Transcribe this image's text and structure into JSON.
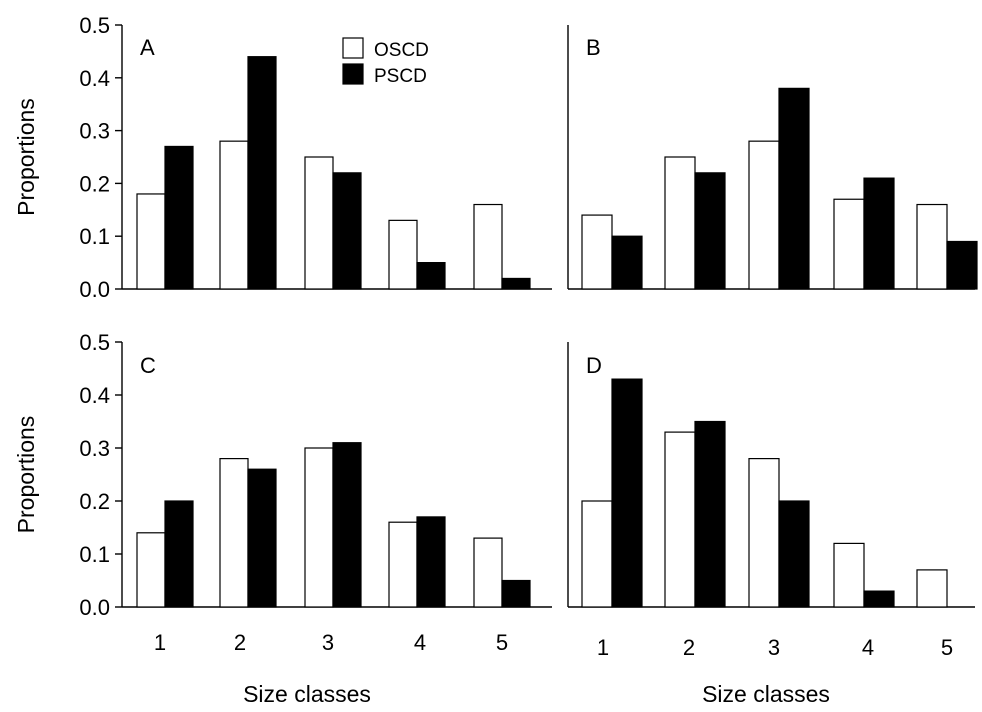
{
  "figure": {
    "ylabel": "Proportions",
    "xlabel": "Size classes"
  },
  "legend": [
    {
      "name": "OSCD",
      "fill": "#ffffff"
    },
    {
      "name": "PSCD",
      "fill": "#000000"
    }
  ],
  "chart_data": [
    {
      "type": "bar",
      "panel": "A",
      "categories": [
        "1",
        "2",
        "3",
        "4",
        "5"
      ],
      "series": [
        {
          "name": "OSCD",
          "values": [
            0.18,
            0.28,
            0.25,
            0.13,
            0.16
          ]
        },
        {
          "name": "PSCD",
          "values": [
            0.27,
            0.44,
            0.22,
            0.05,
            0.02
          ]
        }
      ],
      "ylim": [
        0,
        0.5
      ],
      "yticks": [
        "0.0",
        "0.1",
        "0.2",
        "0.3",
        "0.4",
        "0.5"
      ],
      "ylabel": "Proportions",
      "xlabel": "",
      "legend": "top-center"
    },
    {
      "type": "bar",
      "panel": "B",
      "categories": [
        "1",
        "2",
        "3",
        "4",
        "5"
      ],
      "series": [
        {
          "name": "OSCD",
          "values": [
            0.14,
            0.25,
            0.28,
            0.17,
            0.16
          ]
        },
        {
          "name": "PSCD",
          "values": [
            0.1,
            0.22,
            0.38,
            0.21,
            0.09
          ]
        }
      ],
      "ylim": [
        0,
        0.5
      ],
      "xlabel": ""
    },
    {
      "type": "bar",
      "panel": "C",
      "categories": [
        "1",
        "2",
        "3",
        "4",
        "5"
      ],
      "series": [
        {
          "name": "OSCD",
          "values": [
            0.14,
            0.28,
            0.3,
            0.16,
            0.13
          ]
        },
        {
          "name": "PSCD",
          "values": [
            0.2,
            0.26,
            0.31,
            0.17,
            0.05
          ]
        }
      ],
      "ylim": [
        0,
        0.5
      ],
      "yticks": [
        "0.0",
        "0.1",
        "0.2",
        "0.3",
        "0.4",
        "0.5"
      ],
      "ylabel": "Proportions",
      "xlabel": "Size classes"
    },
    {
      "type": "bar",
      "panel": "D",
      "categories": [
        "1",
        "2",
        "3",
        "4",
        "5"
      ],
      "series": [
        {
          "name": "OSCD",
          "values": [
            0.2,
            0.33,
            0.28,
            0.12,
            0.07
          ]
        },
        {
          "name": "PSCD",
          "values": [
            0.43,
            0.35,
            0.2,
            0.03,
            0.0
          ]
        }
      ],
      "ylim": [
        0,
        0.5
      ],
      "xlabel": "Size classes"
    }
  ]
}
